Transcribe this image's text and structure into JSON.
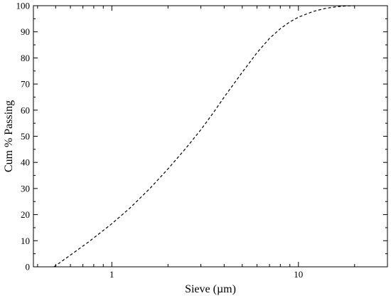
{
  "chart_data": {
    "type": "line",
    "xlabel": "Sieve (µm)",
    "ylabel": "Cum % Passing",
    "x_scale": "log",
    "xlim": [
      0.38,
      30
    ],
    "ylim": [
      0,
      100
    ],
    "grid": false,
    "legend": "none",
    "x_ticks": [
      {
        "value": 1,
        "label": "1"
      },
      {
        "value": 10,
        "label": "10"
      }
    ],
    "y_ticks": [
      "0",
      "10",
      "20",
      "30",
      "40",
      "50",
      "60",
      "70",
      "80",
      "90",
      "100"
    ],
    "series": [
      {
        "line_style": "dashed",
        "color": "#000000",
        "x": [
          0.49,
          0.6,
          0.75,
          1.0,
          1.25,
          1.6,
          2.0,
          2.5,
          3.0,
          3.5,
          4.0,
          5.0,
          6.0,
          7.0,
          8.0,
          9.0,
          10.0,
          12.0,
          14.0,
          16.0,
          18.0,
          20.0
        ],
        "y": [
          0,
          4.5,
          9.5,
          16.5,
          22.5,
          30,
          37.5,
          45.5,
          52.5,
          59,
          65,
          74.5,
          82,
          87.5,
          91.2,
          93.8,
          95.6,
          97.8,
          99,
          99.6,
          99.9,
          100
        ]
      }
    ]
  }
}
